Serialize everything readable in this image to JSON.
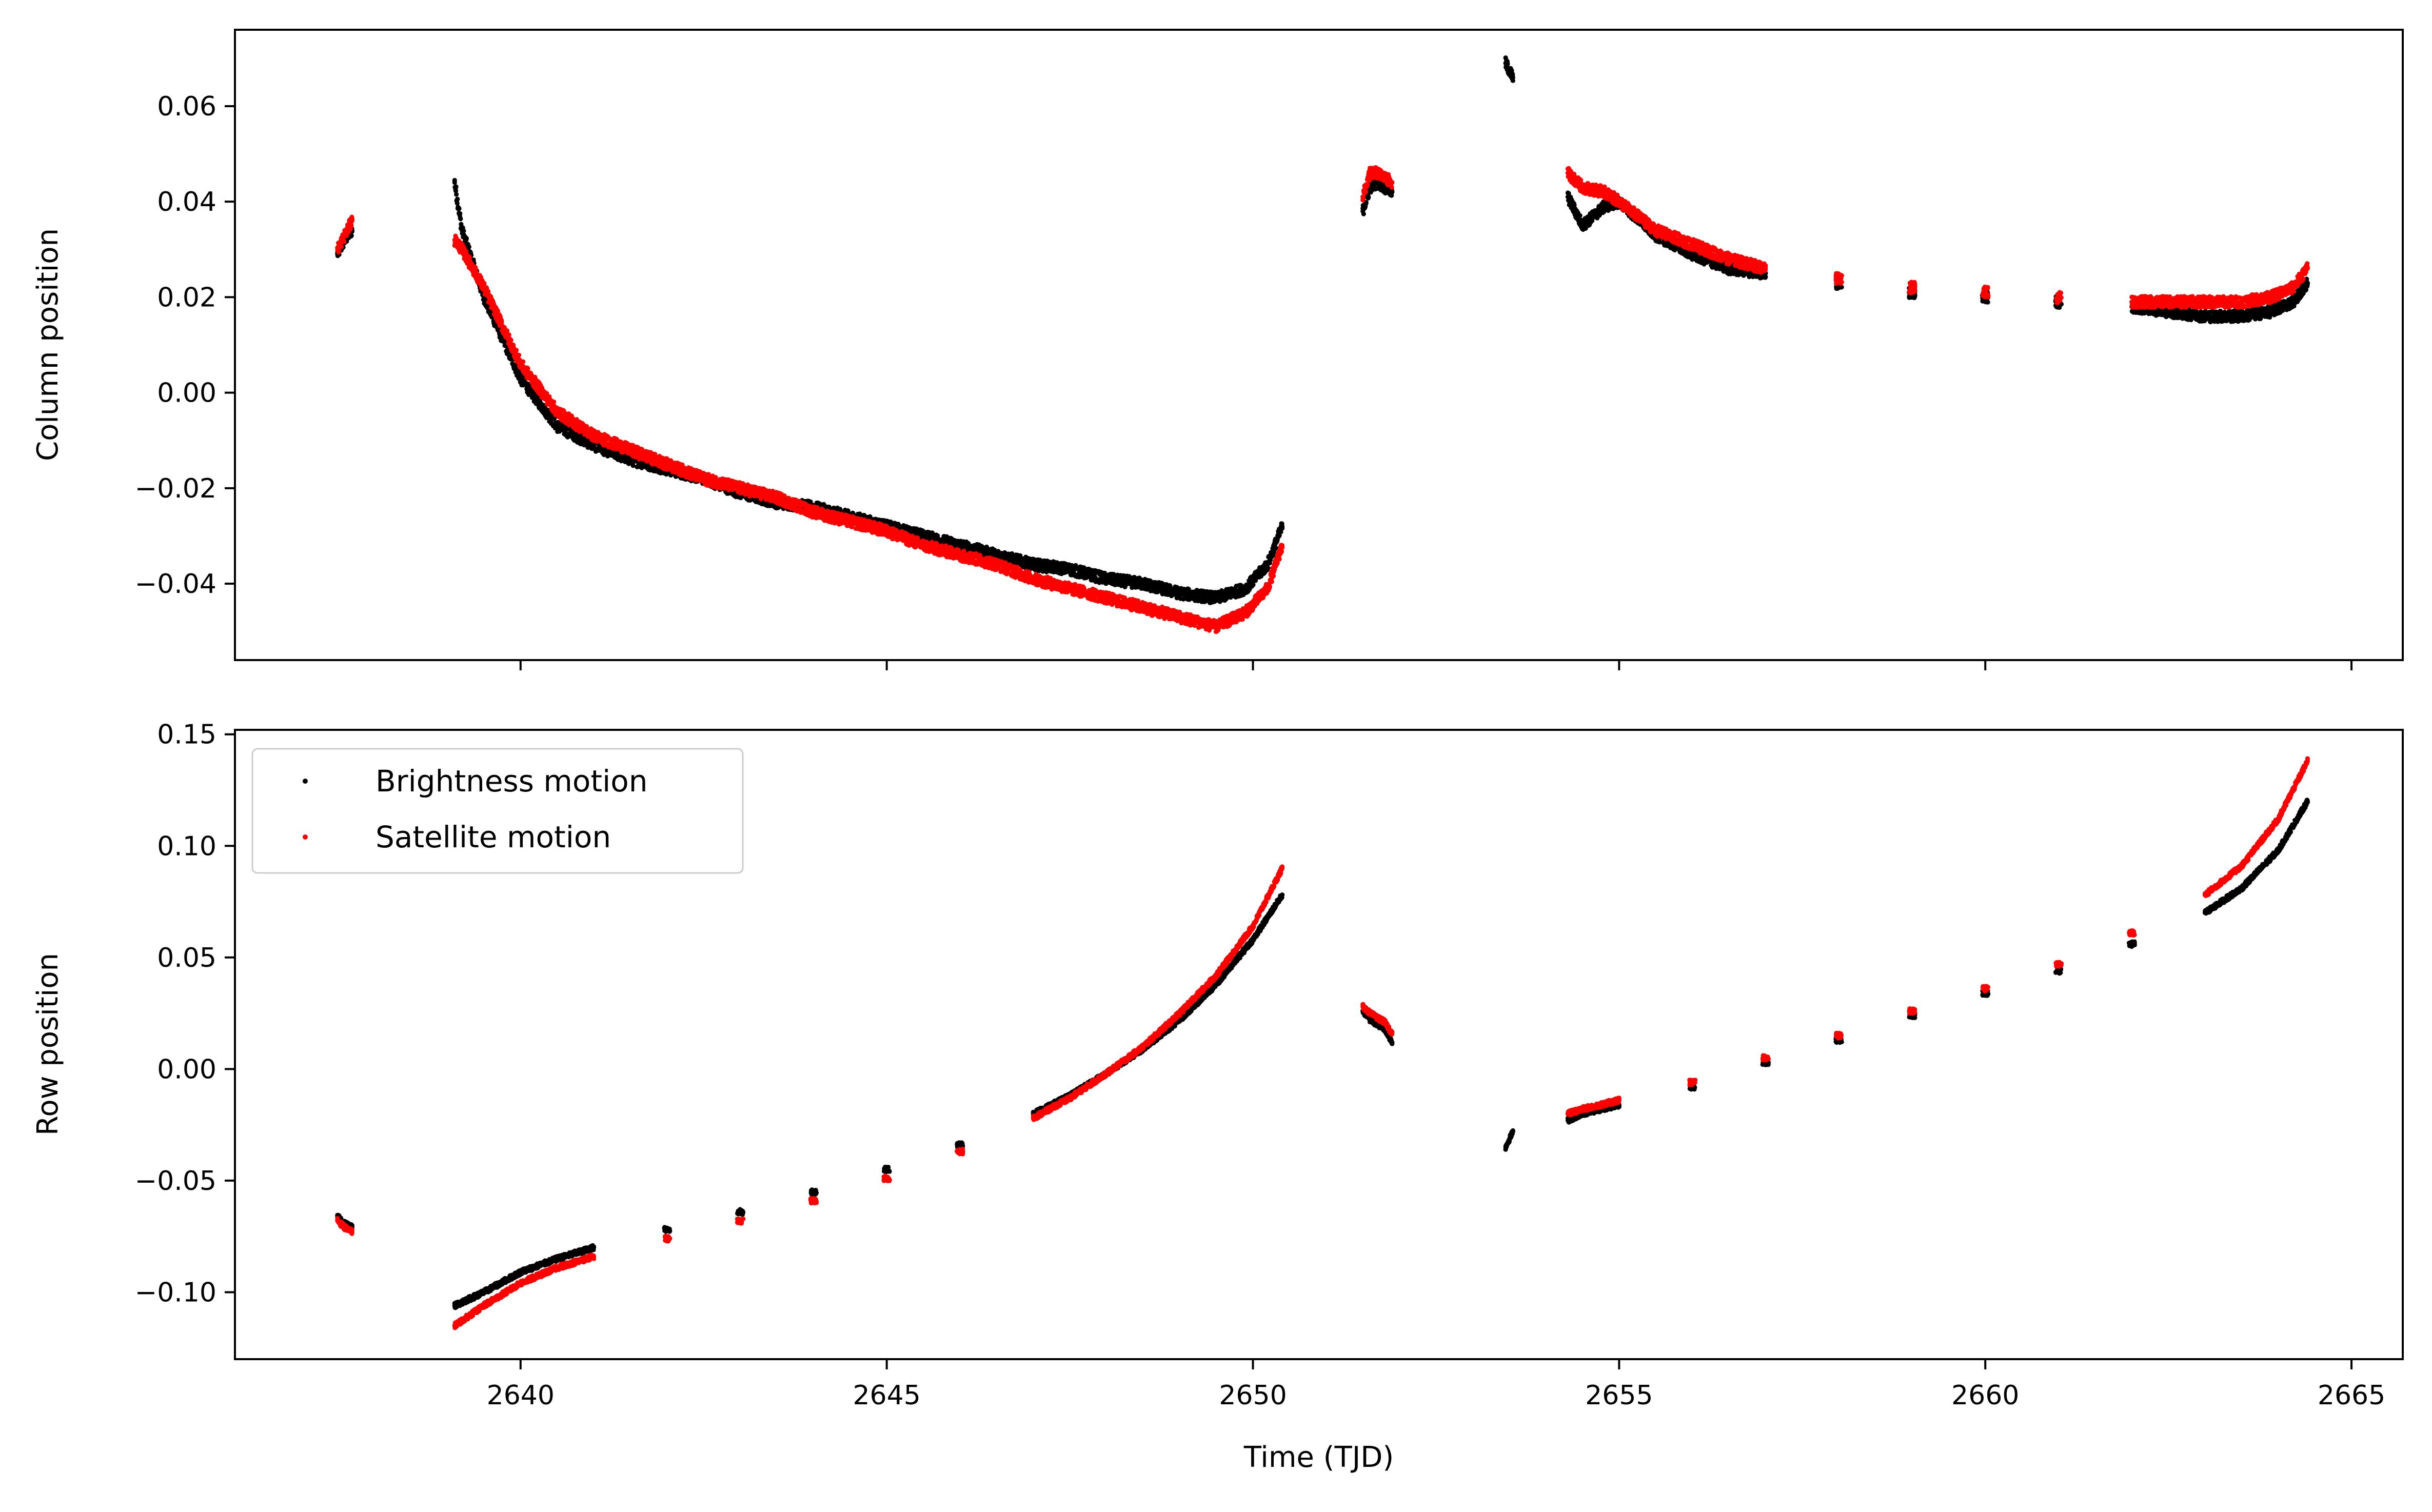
{
  "chart_data": [
    {
      "type": "scatter",
      "panel": "top",
      "ylabel": "Column position",
      "xlabel": "",
      "xlim": [
        2636.1,
        2665.7
      ],
      "ylim": [
        -0.056,
        0.076
      ],
      "xticks": [
        2640,
        2645,
        2650,
        2655,
        2660,
        2665
      ],
      "xtick_labels_shown": false,
      "yticks": [
        -0.04,
        -0.02,
        0.0,
        0.02,
        0.04,
        0.06
      ],
      "ytick_labels": [
        "−0.04",
        "−0.02",
        "0.00",
        "0.02",
        "0.04",
        "0.06"
      ],
      "legend": null,
      "series": [
        {
          "name": "Brightness motion",
          "color": "#000000",
          "x": [
            2637.5,
            2637.6,
            2637.7,
            2639.1,
            2639.2,
            2639.5,
            2640.0,
            2640.5,
            2641.0,
            2641.5,
            2642.0,
            2642.5,
            2643.0,
            2643.5,
            2644.0,
            2644.5,
            2645.0,
            2645.5,
            2646.0,
            2646.5,
            2647.0,
            2647.5,
            2648.0,
            2648.5,
            2649.0,
            2649.5,
            2649.9,
            2650.2,
            2650.4,
            2651.5,
            2651.6,
            2651.7,
            2651.8,
            2651.9,
            2653.45,
            2653.55,
            2654.3,
            2654.5,
            2654.8,
            2655.0,
            2655.5,
            2656.0,
            2656.5,
            2657.0,
            2658.0,
            2659.0,
            2660.0,
            2661.0,
            2662.0,
            2662.5,
            2663.0,
            2663.5,
            2663.9,
            2664.2,
            2664.4
          ],
          "y": [
            0.029,
            0.032,
            0.034,
            0.044,
            0.034,
            0.02,
            0.003,
            -0.007,
            -0.011,
            -0.014,
            -0.016,
            -0.018,
            -0.021,
            -0.023,
            -0.024,
            -0.026,
            -0.028,
            -0.03,
            -0.032,
            -0.034,
            -0.036,
            -0.037,
            -0.039,
            -0.04,
            -0.042,
            -0.043,
            -0.041,
            -0.036,
            -0.028,
            0.038,
            0.043,
            0.044,
            0.043,
            0.042,
            0.069,
            0.066,
            0.041,
            0.035,
            0.039,
            0.04,
            0.033,
            0.029,
            0.026,
            0.025,
            0.023,
            0.021,
            0.02,
            0.019,
            0.018,
            0.017,
            0.016,
            0.016,
            0.017,
            0.019,
            0.023
          ]
        },
        {
          "name": "Satellite motion",
          "color": "#ff0000",
          "x": [
            2637.5,
            2637.6,
            2637.7,
            2639.1,
            2639.2,
            2639.5,
            2640.0,
            2640.5,
            2641.0,
            2641.5,
            2642.0,
            2642.5,
            2643.0,
            2643.5,
            2644.0,
            2644.5,
            2645.0,
            2645.5,
            2646.0,
            2646.5,
            2647.0,
            2647.5,
            2648.0,
            2648.5,
            2649.0,
            2649.5,
            2649.9,
            2650.2,
            2650.4,
            2651.5,
            2651.6,
            2651.7,
            2651.8,
            2651.9,
            2654.3,
            2654.5,
            2654.8,
            2655.0,
            2655.5,
            2656.0,
            2656.5,
            2657.0,
            2658.0,
            2659.0,
            2660.0,
            2661.0,
            2662.0,
            2662.5,
            2663.0,
            2663.5,
            2663.9,
            2664.2,
            2664.4
          ],
          "y": [
            0.03,
            0.033,
            0.036,
            0.032,
            0.03,
            0.022,
            0.006,
            -0.004,
            -0.009,
            -0.012,
            -0.015,
            -0.018,
            -0.02,
            -0.022,
            -0.025,
            -0.027,
            -0.029,
            -0.032,
            -0.034,
            -0.036,
            -0.039,
            -0.041,
            -0.043,
            -0.045,
            -0.047,
            -0.049,
            -0.046,
            -0.041,
            -0.032,
            0.041,
            0.046,
            0.046,
            0.045,
            0.044,
            0.046,
            0.043,
            0.042,
            0.04,
            0.034,
            0.031,
            0.028,
            0.026,
            0.024,
            0.022,
            0.021,
            0.02,
            0.019,
            0.019,
            0.019,
            0.019,
            0.02,
            0.022,
            0.026
          ]
        }
      ]
    },
    {
      "type": "scatter",
      "panel": "bottom",
      "ylabel": "Row position",
      "xlabel": "Time (TJD)",
      "xlim": [
        2636.1,
        2665.7
      ],
      "ylim": [
        -0.13,
        0.152
      ],
      "xticks": [
        2640,
        2645,
        2650,
        2655,
        2660,
        2665
      ],
      "xtick_labels": [
        "2640",
        "2645",
        "2650",
        "2655",
        "2660",
        "2665"
      ],
      "yticks": [
        -0.1,
        -0.05,
        0.0,
        0.05,
        0.1,
        0.15
      ],
      "ytick_labels": [
        "−0.10",
        "−0.05",
        "0.00",
        "0.05",
        "0.10",
        "0.15"
      ],
      "legend": "top-left",
      "series": [
        {
          "name": "Brightness motion",
          "color": "#000000",
          "x": [
            2637.5,
            2637.6,
            2637.7,
            2639.1,
            2639.5,
            2640.0,
            2640.5,
            2641.0,
            2642.0,
            2643.0,
            2644.0,
            2645.0,
            2646.0,
            2647.0,
            2647.5,
            2648.0,
            2648.5,
            2649.0,
            2649.5,
            2650.0,
            2650.4,
            2651.5,
            2651.6,
            2651.7,
            2651.8,
            2651.9,
            2653.45,
            2653.55,
            2654.3,
            2654.5,
            2655.0,
            2656.0,
            2657.0,
            2658.0,
            2659.0,
            2660.0,
            2661.0,
            2662.0,
            2663.0,
            2663.5,
            2664.0,
            2664.4
          ],
          "y": [
            -0.066,
            -0.069,
            -0.071,
            -0.106,
            -0.1,
            -0.091,
            -0.085,
            -0.08,
            -0.072,
            -0.064,
            -0.055,
            -0.045,
            -0.034,
            -0.02,
            -0.012,
            -0.002,
            0.009,
            0.022,
            0.038,
            0.058,
            0.078,
            0.026,
            0.022,
            0.02,
            0.018,
            0.012,
            -0.035,
            -0.028,
            -0.023,
            -0.02,
            -0.016,
            -0.008,
            0.003,
            0.013,
            0.024,
            0.034,
            0.044,
            0.056,
            0.07,
            0.081,
            0.098,
            0.12
          ]
        },
        {
          "name": "Satellite motion",
          "color": "#ff0000",
          "x": [
            2637.5,
            2637.6,
            2637.7,
            2639.1,
            2639.5,
            2640.0,
            2640.5,
            2641.0,
            2642.0,
            2643.0,
            2644.0,
            2645.0,
            2646.0,
            2647.0,
            2647.5,
            2648.0,
            2648.5,
            2649.0,
            2649.5,
            2650.0,
            2650.4,
            2651.5,
            2651.6,
            2651.7,
            2651.8,
            2651.9,
            2654.3,
            2654.5,
            2655.0,
            2656.0,
            2657.0,
            2658.0,
            2659.0,
            2660.0,
            2661.0,
            2662.0,
            2663.0,
            2663.5,
            2664.0,
            2664.4
          ],
          "y": [
            -0.068,
            -0.071,
            -0.073,
            -0.115,
            -0.106,
            -0.096,
            -0.089,
            -0.084,
            -0.076,
            -0.068,
            -0.059,
            -0.049,
            -0.037,
            -0.022,
            -0.013,
            -0.002,
            0.01,
            0.025,
            0.042,
            0.064,
            0.09,
            0.028,
            0.025,
            0.023,
            0.021,
            0.016,
            -0.02,
            -0.018,
            -0.014,
            -0.006,
            0.005,
            0.015,
            0.026,
            0.036,
            0.047,
            0.061,
            0.078,
            0.091,
            0.112,
            0.138
          ]
        }
      ]
    }
  ],
  "legend": {
    "entries": [
      {
        "label": "Brightness motion",
        "color": "#000000"
      },
      {
        "label": "Satellite motion",
        "color": "#ff0000"
      }
    ]
  }
}
